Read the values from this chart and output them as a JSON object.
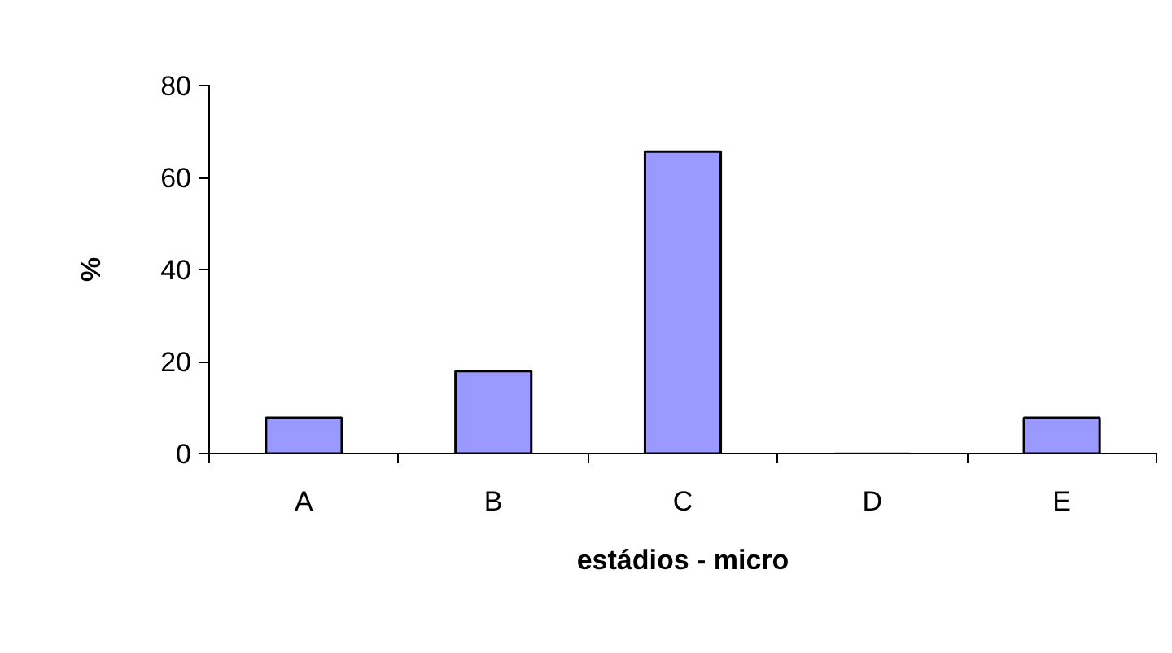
{
  "chart_data": {
    "type": "bar",
    "xlabel": "estádios - micro",
    "ylabel": "%",
    "categories": [
      "A",
      "B",
      "C",
      "D",
      "E"
    ],
    "values": [
      7.8,
      17.9,
      65.6,
      0,
      7.8
    ],
    "color": "#9999ff",
    "ylim": [
      0,
      80
    ],
    "yticks": [
      0,
      20,
      40,
      60,
      80
    ],
    "grid": false
  }
}
